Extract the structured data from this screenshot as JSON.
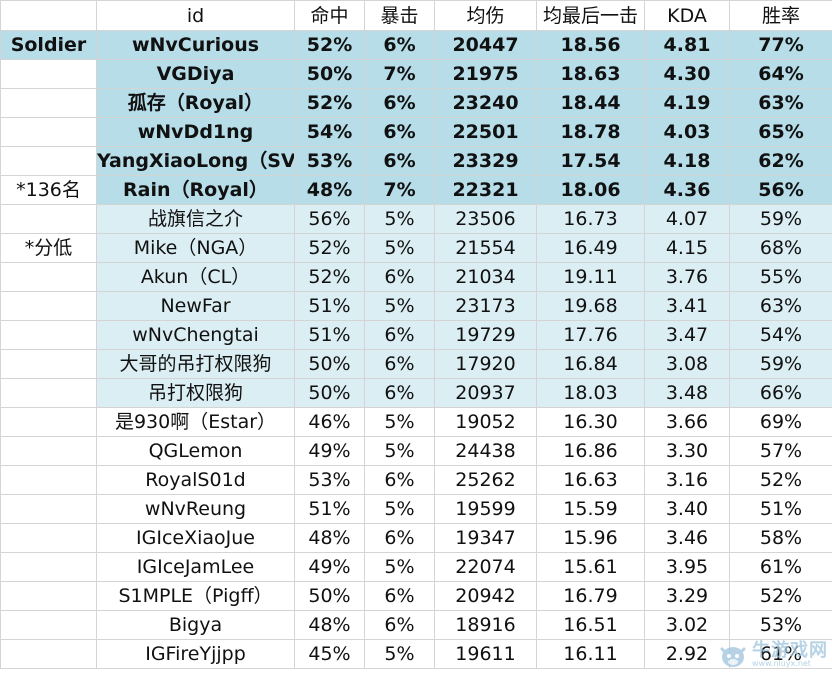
{
  "headers": [
    "",
    "id",
    "命中",
    "暴击",
    "均伤",
    "均最后一击",
    "KDA",
    "胜率"
  ],
  "rows": [
    {
      "label": "Soldier",
      "tier": "strong",
      "id": "wNvCurious",
      "hit": "52%",
      "crit": "6%",
      "avg_dmg": "20447",
      "avg_lasthit": "18.56",
      "kda": "4.81",
      "winrate": "77%"
    },
    {
      "label": "",
      "tier": "strong",
      "id": "VGDiya",
      "hit": "50%",
      "crit": "7%",
      "avg_dmg": "21975",
      "avg_lasthit": "18.63",
      "kda": "4.30",
      "winrate": "64%"
    },
    {
      "label": "",
      "tier": "strong",
      "id": "孤存（Royal）",
      "hit": "52%",
      "crit": "6%",
      "avg_dmg": "23240",
      "avg_lasthit": "18.44",
      "kda": "4.19",
      "winrate": "63%"
    },
    {
      "label": "",
      "tier": "strong",
      "id": "wNvDd1ng",
      "hit": "54%",
      "crit": "6%",
      "avg_dmg": "22501",
      "avg_lasthit": "18.78",
      "kda": "4.03",
      "winrate": "65%"
    },
    {
      "label": "",
      "tier": "strong",
      "id": "YangXiaoLong（SV",
      "hit": "53%",
      "crit": "6%",
      "avg_dmg": "23329",
      "avg_lasthit": "17.54",
      "kda": "4.18",
      "winrate": "62%"
    },
    {
      "label": "*136名",
      "tier": "strong",
      "id": "Rain（Royal）",
      "hit": "48%",
      "crit": "7%",
      "avg_dmg": "22321",
      "avg_lasthit": "18.06",
      "kda": "4.36",
      "winrate": "56%"
    },
    {
      "label": "",
      "tier": "light",
      "id": "战旗信之介",
      "hit": "56%",
      "crit": "5%",
      "avg_dmg": "23506",
      "avg_lasthit": "16.73",
      "kda": "4.07",
      "winrate": "59%"
    },
    {
      "label": "*分低",
      "tier": "light",
      "id": "Mike（NGA）",
      "hit": "52%",
      "crit": "5%",
      "avg_dmg": "21554",
      "avg_lasthit": "16.49",
      "kda": "4.15",
      "winrate": "68%"
    },
    {
      "label": "",
      "tier": "light",
      "id": "Akun（CL）",
      "hit": "52%",
      "crit": "6%",
      "avg_dmg": "21034",
      "avg_lasthit": "19.11",
      "kda": "3.76",
      "winrate": "55%"
    },
    {
      "label": "",
      "tier": "light",
      "id": "NewFar",
      "hit": "51%",
      "crit": "5%",
      "avg_dmg": "23173",
      "avg_lasthit": "19.68",
      "kda": "3.41",
      "winrate": "63%"
    },
    {
      "label": "",
      "tier": "light",
      "id": "wNvChengtai",
      "hit": "51%",
      "crit": "6%",
      "avg_dmg": "19729",
      "avg_lasthit": "17.76",
      "kda": "3.47",
      "winrate": "54%"
    },
    {
      "label": "",
      "tier": "light",
      "id": "大哥的吊打权限狗",
      "hit": "50%",
      "crit": "6%",
      "avg_dmg": "17920",
      "avg_lasthit": "16.84",
      "kda": "3.08",
      "winrate": "59%"
    },
    {
      "label": "",
      "tier": "light",
      "id": "吊打权限狗",
      "hit": "50%",
      "crit": "6%",
      "avg_dmg": "20937",
      "avg_lasthit": "18.03",
      "kda": "3.48",
      "winrate": "66%"
    },
    {
      "label": "",
      "tier": "none",
      "id": "是930啊（Estar）",
      "hit": "46%",
      "crit": "5%",
      "avg_dmg": "19052",
      "avg_lasthit": "16.30",
      "kda": "3.66",
      "winrate": "69%"
    },
    {
      "label": "",
      "tier": "none",
      "id": "QGLemon",
      "hit": "49%",
      "crit": "5%",
      "avg_dmg": "24438",
      "avg_lasthit": "16.86",
      "kda": "3.30",
      "winrate": "57%"
    },
    {
      "label": "",
      "tier": "none",
      "id": "RoyalS01d",
      "hit": "53%",
      "crit": "6%",
      "avg_dmg": "25262",
      "avg_lasthit": "16.63",
      "kda": "3.16",
      "winrate": "52%"
    },
    {
      "label": "",
      "tier": "none",
      "id": "wNvReung",
      "hit": "51%",
      "crit": "5%",
      "avg_dmg": "19599",
      "avg_lasthit": "15.59",
      "kda": "3.40",
      "winrate": "51%"
    },
    {
      "label": "",
      "tier": "none",
      "id": "IGIceXiaoJue",
      "hit": "48%",
      "crit": "6%",
      "avg_dmg": "19347",
      "avg_lasthit": "15.96",
      "kda": "3.46",
      "winrate": "58%"
    },
    {
      "label": "",
      "tier": "none",
      "id": "IGIceJamLee",
      "hit": "49%",
      "crit": "5%",
      "avg_dmg": "22074",
      "avg_lasthit": "15.61",
      "kda": "3.95",
      "winrate": "61%"
    },
    {
      "label": "",
      "tier": "none",
      "id": "S1MPLE（Pigff）",
      "hit": "50%",
      "crit": "6%",
      "avg_dmg": "20942",
      "avg_lasthit": "16.79",
      "kda": "3.29",
      "winrate": "52%"
    },
    {
      "label": "",
      "tier": "none",
      "id": "Bigya",
      "hit": "48%",
      "crit": "6%",
      "avg_dmg": "18916",
      "avg_lasthit": "16.51",
      "kda": "3.02",
      "winrate": "53%"
    },
    {
      "label": "",
      "tier": "none",
      "id": "IGFireYjjpp",
      "hit": "45%",
      "crit": "5%",
      "avg_dmg": "19611",
      "avg_lasthit": "16.11",
      "kda": "2.92",
      "winrate": "61%"
    }
  ],
  "watermark": {
    "name": "牛游戏网",
    "url": "www.niuyx.net",
    "icon": "cow-mascot-icon"
  }
}
